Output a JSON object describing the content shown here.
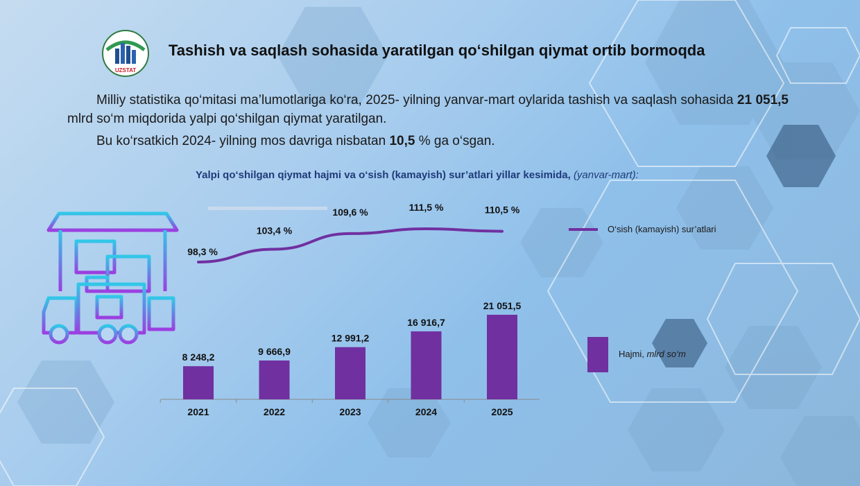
{
  "header": {
    "logo_text": "UZSTAT",
    "title": "Tashish va saqlash sohasida yaratilgan qo‘shilgan qiymat ortib bormoqda"
  },
  "body": {
    "p1_before": "Milliy statistika qo‘mitasi ma’lumotlariga ko‘ra, 2025- yilning yanvar-mart oylarida tashish va saqlash sohasida ",
    "p1_bold": "21 051,5",
    "p1_after": " mlrd so‘m miqdorida yalpi qo‘shilgan qiymat yaratilgan.",
    "p2_before": "Bu ko‘rsatkich 2024- yilning mos davriga nisbatan ",
    "p2_bold": "10,5",
    "p2_after": " % ga o‘sgan."
  },
  "chart_title": {
    "main": "Yalpi qo‘shilgan qiymat hajmi va o‘sish (kamayish) sur’atlari yillar kesimida, ",
    "italic": "(yanvar-mart):"
  },
  "colors": {
    "bar": "#7030a0",
    "line": "#7030a0",
    "title": "#1f3b7a"
  },
  "chart_data": {
    "type": "bar",
    "categories": [
      "2021",
      "2022",
      "2023",
      "2024",
      "2025"
    ],
    "series": [
      {
        "name": "Hajmi, mlrd so‘m",
        "type": "bar",
        "values": [
          8248.2,
          9666.9,
          12991.2,
          16916.7,
          21051.5
        ],
        "labels": [
          "8 248,2",
          "9 666,9",
          "12 991,2",
          "16 916,7",
          "21 051,5"
        ]
      },
      {
        "name": "O‘sish (kamayish) sur’atlari",
        "type": "line",
        "values": [
          98.3,
          103.4,
          109.6,
          111.5,
          110.5
        ],
        "labels": [
          "98,3 %",
          "103,4 %",
          "109,6 %",
          "111,5 %",
          "110,5 %"
        ]
      }
    ],
    "legend": {
      "line_label": "O‘sish (kamayish) sur’atlari",
      "bar_label_main": "Hajmi, ",
      "bar_label_unit": "mlrd so‘m",
      "placement": "right"
    },
    "grid": false
  }
}
